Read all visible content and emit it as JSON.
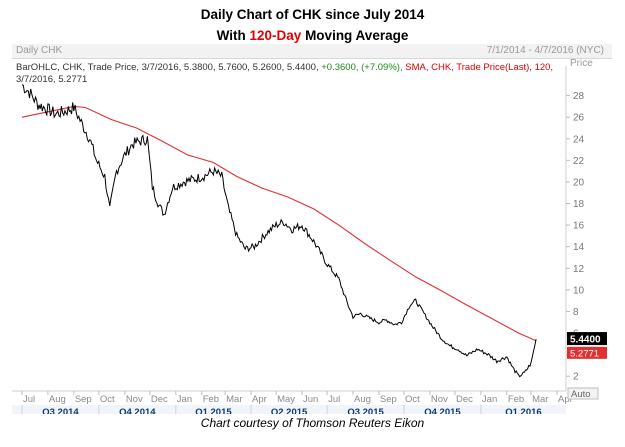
{
  "title": {
    "line1": "Daily Chart of CHK since July 2014",
    "line2_pre": "With ",
    "line2_highlight": "120-Day",
    "line2_post": " Moving Average"
  },
  "header": {
    "symbol_label": "Daily CHK",
    "date_range": "7/1/2014 - 4/7/2016 (NYC)"
  },
  "legend": {
    "bar_prefix": "BarOHLC, CHK, Trade Price, 3/7/2016, 5.3800, 5.7600, 5.2600, 5.4400,",
    "bar_change": "+0.3600, (+7.09%),",
    "sma_text": "SMA, CHK, Trade Price(Last), 120,",
    "sma_line2": "3/7/2016, 5.2771"
  },
  "axis": {
    "price_label": "Price",
    "auto_label": "Auto",
    "last_price_tag": "5.4400",
    "sma_tag": "5.2771"
  },
  "footer": "Chart courtesy of Thomson Reuters Eikon",
  "colors": {
    "price": "#000000",
    "sma": "#e03030",
    "highlight": "#e00000",
    "change_positive": "#1a8a1a",
    "quarter_bar": "#0b3a78"
  },
  "chart_data": {
    "type": "line",
    "title": "Daily Chart of CHK since July 2014 With 120-Day Moving Average",
    "xlabel": "",
    "ylabel": "Price",
    "x_range": [
      "2014-07-01",
      "2016-04-07"
    ],
    "ylim": [
      1,
      30
    ],
    "y_ticks": [
      2,
      4,
      6,
      8,
      10,
      12,
      14,
      16,
      18,
      20,
      22,
      24,
      26,
      28
    ],
    "x_month_ticks": [
      "Jul",
      "Aug",
      "Sep",
      "Oct",
      "Nov",
      "Dec",
      "Jan",
      "Feb",
      "Mar",
      "Apr",
      "May",
      "Jun",
      "Jul",
      "Aug",
      "Sep",
      "Oct",
      "Nov",
      "Dec",
      "Jan",
      "Feb",
      "Mar",
      "Apr"
    ],
    "x_quarter_ticks": [
      "Q3 2014",
      "Q4 2014",
      "Q1 2015",
      "Q2 2015",
      "Q3 2015",
      "Q4 2015",
      "Q1 2016"
    ],
    "grid": false,
    "series": [
      {
        "name": "BarOHLC, CHK, Trade Price",
        "points": [
          [
            "2014-07-01",
            29.0
          ],
          [
            "2014-07-10",
            28.3
          ],
          [
            "2014-07-20",
            27.2
          ],
          [
            "2014-08-01",
            26.7
          ],
          [
            "2014-08-10",
            26.3
          ],
          [
            "2014-08-20",
            26.5
          ],
          [
            "2014-09-01",
            26.9
          ],
          [
            "2014-09-10",
            25.5
          ],
          [
            "2014-09-20",
            24.0
          ],
          [
            "2014-09-28",
            22.0
          ],
          [
            "2014-10-08",
            20.5
          ],
          [
            "2014-10-14",
            17.5
          ],
          [
            "2014-10-22",
            21.0
          ],
          [
            "2014-11-01",
            22.5
          ],
          [
            "2014-11-10",
            23.5
          ],
          [
            "2014-11-20",
            23.8
          ],
          [
            "2014-11-28",
            24.0
          ],
          [
            "2014-12-04",
            19.5
          ],
          [
            "2014-12-12",
            17.8
          ],
          [
            "2014-12-18",
            17.0
          ],
          [
            "2014-12-28",
            19.5
          ],
          [
            "2015-01-10",
            20.0
          ],
          [
            "2015-01-25",
            20.3
          ],
          [
            "2015-02-05",
            20.6
          ],
          [
            "2015-02-15",
            21.0
          ],
          [
            "2015-02-25",
            20.5
          ],
          [
            "2015-03-05",
            17.5
          ],
          [
            "2015-03-15",
            15.0
          ],
          [
            "2015-03-25",
            13.8
          ],
          [
            "2015-04-05",
            14.0
          ],
          [
            "2015-04-20",
            15.3
          ],
          [
            "2015-05-01",
            16.0
          ],
          [
            "2015-05-10",
            16.3
          ],
          [
            "2015-05-20",
            15.6
          ],
          [
            "2015-06-01",
            16.0
          ],
          [
            "2015-06-15",
            14.5
          ],
          [
            "2015-06-30",
            12.5
          ],
          [
            "2015-07-15",
            11.0
          ],
          [
            "2015-07-25",
            8.8
          ],
          [
            "2015-08-01",
            7.5
          ],
          [
            "2015-08-10",
            7.8
          ],
          [
            "2015-08-20",
            7.4
          ],
          [
            "2015-09-01",
            7.0
          ],
          [
            "2015-09-10",
            7.2
          ],
          [
            "2015-09-20",
            6.8
          ],
          [
            "2015-09-28",
            7.0
          ],
          [
            "2015-10-08",
            8.6
          ],
          [
            "2015-10-15",
            9.0
          ],
          [
            "2015-10-25",
            7.8
          ],
          [
            "2015-11-05",
            6.5
          ],
          [
            "2015-11-15",
            5.5
          ],
          [
            "2015-11-25",
            4.8
          ],
          [
            "2015-12-05",
            4.5
          ],
          [
            "2015-12-15",
            3.9
          ],
          [
            "2015-12-28",
            4.5
          ],
          [
            "2016-01-10",
            4.0
          ],
          [
            "2016-01-20",
            3.4
          ],
          [
            "2016-02-01",
            3.8
          ],
          [
            "2016-02-08",
            2.8
          ],
          [
            "2016-02-15",
            2.0
          ],
          [
            "2016-02-22",
            2.3
          ],
          [
            "2016-03-01",
            3.2
          ],
          [
            "2016-03-07",
            5.44
          ]
        ]
      },
      {
        "name": "SMA, CHK, Trade Price(Last), 120",
        "points": [
          [
            "2014-07-01",
            26.0
          ],
          [
            "2014-08-01",
            26.5
          ],
          [
            "2014-09-01",
            27.0
          ],
          [
            "2014-09-15",
            26.9
          ],
          [
            "2014-10-15",
            25.8
          ],
          [
            "2014-11-15",
            25.0
          ],
          [
            "2014-12-15",
            23.8
          ],
          [
            "2015-01-15",
            22.5
          ],
          [
            "2015-02-15",
            21.8
          ],
          [
            "2015-03-15",
            20.5
          ],
          [
            "2015-04-15",
            19.4
          ],
          [
            "2015-05-15",
            18.6
          ],
          [
            "2015-06-15",
            17.5
          ],
          [
            "2015-07-15",
            16.0
          ],
          [
            "2015-08-15",
            14.3
          ],
          [
            "2015-09-15",
            12.7
          ],
          [
            "2015-10-15",
            11.2
          ],
          [
            "2015-11-15",
            9.9
          ],
          [
            "2015-12-15",
            8.6
          ],
          [
            "2016-01-15",
            7.3
          ],
          [
            "2016-02-15",
            6.0
          ],
          [
            "2016-03-07",
            5.2771
          ]
        ]
      }
    ]
  }
}
